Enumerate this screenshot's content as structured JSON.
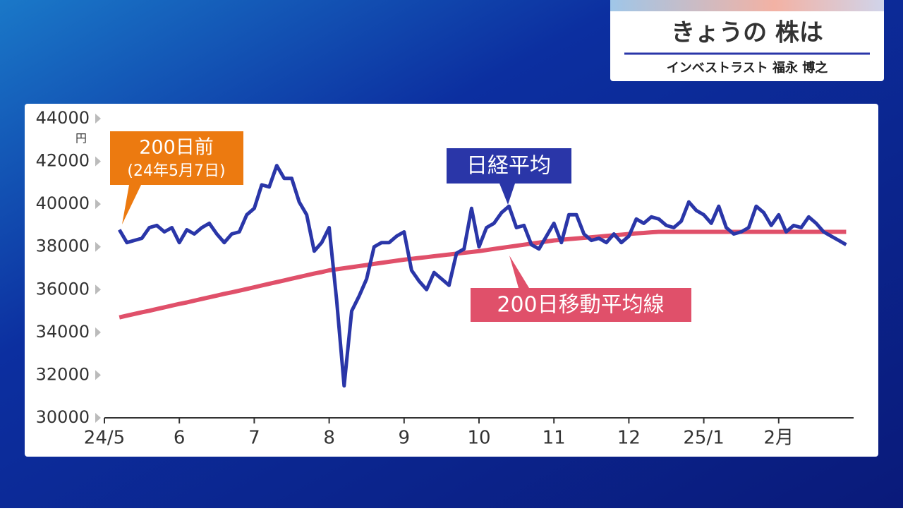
{
  "header": {
    "title": "きょうの 株は",
    "subtitle": "インベストラスト 福永 博之"
  },
  "chart_data": {
    "type": "line",
    "y_unit": "円",
    "annotations": [
      "200日前",
      "(24年5月7日)"
    ],
    "categories": [
      "24/5",
      null,
      null,
      null,
      null,
      null,
      null,
      null,
      null,
      null,
      "6",
      null,
      null,
      null,
      null,
      null,
      null,
      null,
      null,
      null,
      "7",
      null,
      null,
      null,
      null,
      null,
      null,
      null,
      null,
      null,
      "8",
      null,
      null,
      null,
      null,
      null,
      null,
      null,
      null,
      null,
      "9",
      null,
      null,
      null,
      null,
      null,
      null,
      null,
      null,
      null,
      "10",
      null,
      null,
      null,
      null,
      null,
      null,
      null,
      null,
      null,
      "11",
      null,
      null,
      null,
      null,
      null,
      null,
      null,
      null,
      null,
      "12",
      null,
      null,
      null,
      null,
      null,
      null,
      null,
      null,
      null,
      "25/1",
      null,
      null,
      null,
      null,
      null,
      null,
      null,
      null,
      null,
      "2月",
      null,
      null,
      null,
      null,
      null,
      null,
      null,
      null,
      null
    ],
    "series": [
      {
        "name": "日経平均",
        "color": "#2a36a8",
        "values": [
          null,
          null,
          38800,
          38200,
          38300,
          38400,
          38900,
          39000,
          38700,
          38900,
          38200,
          38800,
          38600,
          38900,
          39100,
          38600,
          38200,
          38600,
          38700,
          39500,
          39800,
          40900,
          40800,
          41800,
          41200,
          41200,
          40100,
          39500,
          37800,
          38200,
          38900,
          35500,
          31500,
          35000,
          35700,
          36500,
          38000,
          38200,
          38200,
          38500,
          38700,
          36900,
          36400,
          36000,
          36800,
          36500,
          36200,
          37700,
          37900,
          39800,
          38000,
          38900,
          39100,
          39600,
          39900,
          38900,
          39000,
          38100,
          37900,
          38500,
          39100,
          38200,
          39500,
          39500,
          38600,
          38300,
          38400,
          38200,
          38600,
          38200,
          38500,
          39300,
          39100,
          39400,
          39300,
          39000,
          38900,
          39200,
          40100,
          39700,
          39500,
          39100,
          39900,
          38900,
          38600,
          38700,
          38900,
          39900,
          39600,
          39000,
          39500,
          38700,
          39000,
          38900,
          39400,
          39100,
          38700,
          38500,
          38300,
          38100
        ]
      },
      {
        "name": "200日移動平均線",
        "color": "#e0506a",
        "values": [
          null,
          null,
          34700,
          34780,
          34860,
          34940,
          35010,
          35090,
          35170,
          35250,
          35330,
          35400,
          35480,
          35560,
          35640,
          35720,
          35800,
          35870,
          35950,
          36030,
          36110,
          36190,
          36270,
          36350,
          36430,
          36510,
          36590,
          36670,
          36750,
          36820,
          36900,
          36950,
          37000,
          37050,
          37100,
          37150,
          37200,
          37250,
          37300,
          37350,
          37400,
          37440,
          37480,
          37520,
          37560,
          37600,
          37640,
          37680,
          37720,
          37760,
          37800,
          37850,
          37900,
          37950,
          38000,
          38050,
          38100,
          38150,
          38200,
          38250,
          38300,
          38330,
          38360,
          38390,
          38420,
          38450,
          38480,
          38510,
          38540,
          38570,
          38600,
          38630,
          38650,
          38680,
          38700,
          38700,
          38700,
          38700,
          38700,
          38700,
          38700,
          38700,
          38700,
          38700,
          38700,
          38700,
          38700,
          38700,
          38700,
          38700,
          38700,
          38700,
          38700,
          38700,
          38700,
          38700,
          38700,
          38700,
          38700,
          38700
        ]
      }
    ],
    "ylim": [
      30000,
      44000
    ],
    "yticks": [
      30000,
      32000,
      34000,
      36000,
      38000,
      40000,
      42000,
      44000
    ]
  }
}
